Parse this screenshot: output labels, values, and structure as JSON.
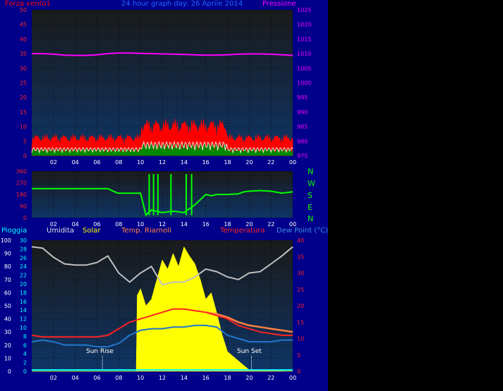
{
  "header": {
    "left_label": "Forza vento1",
    "center_title": "24 hour graph day:  26 Aprile 2014",
    "right_label": "Pressione"
  },
  "direction_labels": [
    "N",
    "W",
    "S",
    "E",
    "N"
  ],
  "bottom_legend": {
    "pioggia": "Pioggia",
    "umidita": "Umidita",
    "solar": "Solar",
    "temp_riarnoli": "Temp. Riarnoli",
    "temperatura": "Temperatura",
    "dew_point": "Dew Point (°C)"
  },
  "annotations": {
    "sun_rise": "Sun Rise",
    "sun_set": "Sun Set"
  },
  "colors": {
    "frame": "#00008b",
    "plot_top": "#1a1a1a",
    "plot_bottom": "#0f3566",
    "wind_gust": "#ff0000",
    "wind_avg": "#008800",
    "wind_line": "#ffffff",
    "pressure": "#ff00ff",
    "direction": "#00ff00",
    "humidity": "#c0c0c0",
    "solar": "#ffff00",
    "temperature": "#ff2222",
    "temp_riarnoli": "#ff8040",
    "dew_point": "#2277cc",
    "rain": "#00ffff"
  },
  "chart_data": [
    {
      "type": "line",
      "x_ticks": [
        "02",
        "04",
        "06",
        "08",
        "10",
        "12",
        "14",
        "16",
        "18",
        "20",
        "22",
        "00"
      ],
      "left_axis": {
        "ticks": [
          0,
          5,
          10,
          15,
          20,
          25,
          30,
          35,
          40,
          45,
          50
        ],
        "ylim": [
          0,
          50
        ]
      },
      "right_axis": {
        "ticks": [
          975,
          980,
          985,
          990,
          995,
          1000,
          1005,
          1010,
          1015,
          1020,
          1025
        ],
        "ylim": [
          975,
          1025
        ]
      },
      "series": [
        {
          "name": "Pressione",
          "axis": "right",
          "x": [
            0,
            1,
            2,
            3,
            4,
            5,
            6,
            7,
            8,
            9,
            10,
            11,
            12,
            13,
            14,
            15,
            16,
            17,
            18,
            19,
            20,
            21,
            22,
            23,
            24
          ],
          "values": [
            1010,
            1010,
            1009.8,
            1009.5,
            1009.4,
            1009.4,
            1009.6,
            1010,
            1010.2,
            1010.2,
            1010.1,
            1010,
            1009.9,
            1009.8,
            1009.7,
            1009.6,
            1009.5,
            1009.5,
            1009.6,
            1009.8,
            1009.9,
            1009.9,
            1009.8,
            1009.6,
            1009.4
          ]
        }
      ]
    },
    {
      "type": "line",
      "x_ticks": [
        "02",
        "04",
        "06",
        "08",
        "10",
        "12",
        "14",
        "16",
        "18",
        "20",
        "22",
        "00"
      ],
      "left_axis": {
        "ticks": [
          0,
          90,
          180,
          270,
          360
        ],
        "ylim": [
          0,
          360
        ]
      },
      "series": [
        {
          "name": "Direction",
          "x": [
            0,
            1,
            2,
            3,
            4,
            5,
            6,
            7,
            7.9,
            8,
            9,
            10,
            10.5,
            11,
            12,
            13,
            14,
            15,
            16,
            16.5,
            17,
            18,
            19,
            19.5,
            20,
            21,
            22,
            23,
            24
          ],
          "values": [
            225,
            225,
            225,
            225,
            225,
            225,
            225,
            225,
            190,
            190,
            190,
            190,
            20,
            60,
            40,
            50,
            40,
            100,
            180,
            170,
            180,
            180,
            185,
            200,
            205,
            210,
            205,
            190,
            200
          ]
        }
      ]
    },
    {
      "type": "line",
      "x_ticks": [
        "02",
        "04",
        "06",
        "08",
        "10",
        "12",
        "14",
        "16",
        "18",
        "20",
        "22",
        "00"
      ],
      "left_axis": {
        "ticks": [
          0,
          10,
          20,
          30,
          40,
          50,
          60,
          70,
          80,
          90,
          100
        ],
        "ylim": [
          0,
          100
        ]
      },
      "rain_axis": {
        "ticks": [
          0,
          2,
          4,
          6,
          8,
          10,
          12,
          14,
          16,
          18,
          20,
          22,
          24,
          26,
          28,
          30
        ],
        "ylim": [
          0,
          30
        ]
      },
      "right_axis": {
        "ticks": [
          0,
          5,
          10,
          15,
          20,
          25,
          30,
          35,
          40
        ],
        "ylim": [
          0,
          40
        ]
      },
      "series": [
        {
          "name": "Umidita",
          "axis": "left",
          "x": [
            0,
            1,
            2,
            3,
            4,
            5,
            6,
            7,
            8,
            9,
            10,
            11,
            12,
            13,
            14,
            15,
            16,
            17,
            18,
            19,
            20,
            21,
            22,
            23,
            24
          ],
          "values": [
            95,
            94,
            87,
            82,
            81,
            81,
            83,
            88,
            75,
            68,
            75,
            80,
            66,
            68,
            68,
            72,
            78,
            76,
            72,
            70,
            75,
            76,
            82,
            88,
            95
          ]
        },
        {
          "name": "Temperatura",
          "axis": "right",
          "x": [
            0,
            1,
            2,
            3,
            4,
            5,
            6,
            7,
            8,
            9,
            10,
            11,
            12,
            13,
            14,
            15,
            16,
            17,
            18,
            19,
            20,
            21,
            22,
            23,
            24
          ],
          "values": [
            11,
            10.5,
            10.5,
            10.5,
            10.5,
            10.5,
            10.5,
            11,
            13,
            15,
            16,
            17,
            18,
            19,
            19,
            18.5,
            18,
            17,
            16,
            14,
            13,
            12,
            11.5,
            11,
            11
          ]
        },
        {
          "name": "Temp. Riarnoli",
          "axis": "right",
          "x": [
            16,
            17,
            18,
            19,
            20,
            21,
            22,
            23,
            24
          ],
          "values": [
            18,
            17.5,
            16.5,
            15,
            14,
            13.5,
            13,
            12.5,
            12
          ]
        },
        {
          "name": "Dew Point (°C)",
          "axis": "right",
          "x": [
            0,
            1,
            2,
            3,
            4,
            5,
            6,
            7,
            8,
            9,
            10,
            11,
            12,
            13,
            14,
            15,
            16,
            17,
            18,
            19,
            20,
            21,
            22,
            23,
            24
          ],
          "values": [
            9,
            9.5,
            9,
            8,
            8,
            8,
            7.5,
            7.5,
            8.5,
            11,
            12.5,
            13,
            13,
            13.5,
            13.5,
            14,
            14,
            13.5,
            11,
            10,
            9,
            9,
            9,
            9.5,
            9.5
          ]
        },
        {
          "name": "Solar",
          "axis": "left",
          "x": [
            0,
            9.6,
            9.7,
            10,
            10.5,
            11,
            11.5,
            12,
            12.5,
            13,
            13.5,
            14,
            14.5,
            15,
            15.5,
            16,
            16.5,
            17,
            17.5,
            18,
            19,
            20,
            24
          ],
          "values": [
            0,
            0,
            58,
            63,
            50,
            55,
            70,
            85,
            78,
            90,
            80,
            95,
            88,
            82,
            70,
            55,
            60,
            45,
            28,
            15,
            8,
            1,
            0
          ]
        },
        {
          "name": "Pioggia",
          "axis": "rain",
          "x": [
            0,
            24
          ],
          "values": [
            0.3,
            0.3
          ]
        }
      ]
    }
  ]
}
